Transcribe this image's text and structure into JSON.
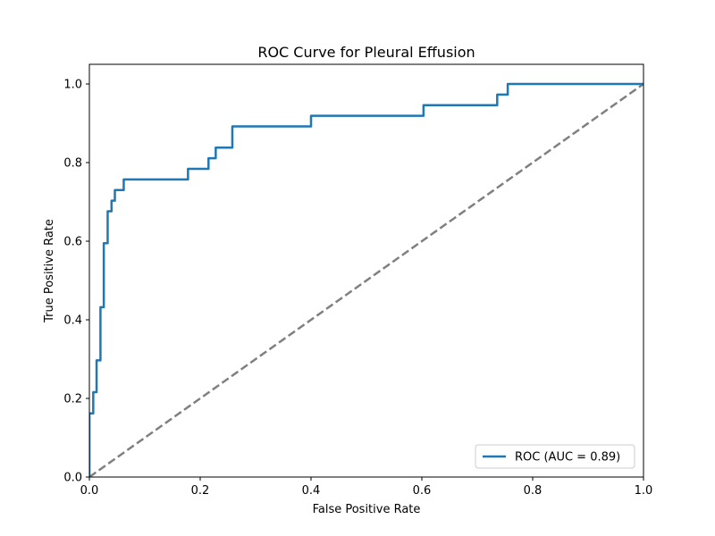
{
  "chart_data": {
    "type": "line",
    "title": "ROC Curve for Pleural Effusion",
    "xlabel": "False Positive Rate",
    "ylabel": "True Positive Rate",
    "xlim": [
      0.0,
      1.0
    ],
    "ylim": [
      0.0,
      1.05
    ],
    "xticks": [
      0.0,
      0.2,
      0.4,
      0.6,
      0.8,
      1.0
    ],
    "yticks": [
      0.0,
      0.2,
      0.4,
      0.6,
      0.8,
      1.0
    ],
    "xtick_labels": [
      "0.0",
      "0.2",
      "0.4",
      "0.6",
      "0.8",
      "1.0"
    ],
    "ytick_labels": [
      "0.0",
      "0.2",
      "0.4",
      "0.6",
      "0.8",
      "1.0"
    ],
    "grid": false,
    "legend_position": "lower-right",
    "series": [
      {
        "name": "ROC (AUC = 0.89)",
        "color": "#1f77b4",
        "style": "solid",
        "x": [
          0.0,
          0.0,
          0.0,
          0.007,
          0.007,
          0.013,
          0.013,
          0.02,
          0.02,
          0.026,
          0.026,
          0.033,
          0.033,
          0.04,
          0.04,
          0.046,
          0.046,
          0.062,
          0.062,
          0.178,
          0.178,
          0.215,
          0.215,
          0.228,
          0.228,
          0.258,
          0.258,
          0.4,
          0.4,
          0.603,
          0.603,
          0.736,
          0.736,
          0.755,
          0.755,
          1.0
        ],
        "y": [
          0.0,
          0.0,
          0.162,
          0.162,
          0.216,
          0.216,
          0.297,
          0.297,
          0.432,
          0.432,
          0.595,
          0.595,
          0.676,
          0.676,
          0.703,
          0.703,
          0.73,
          0.73,
          0.757,
          0.757,
          0.784,
          0.784,
          0.811,
          0.811,
          0.838,
          0.838,
          0.892,
          0.892,
          0.919,
          0.919,
          0.946,
          0.946,
          0.973,
          0.973,
          1.0,
          1.0
        ]
      },
      {
        "name": "",
        "color": "#808080",
        "style": "dashed",
        "x": [
          0.0,
          1.0
        ],
        "y": [
          0.0,
          1.0
        ]
      }
    ]
  }
}
